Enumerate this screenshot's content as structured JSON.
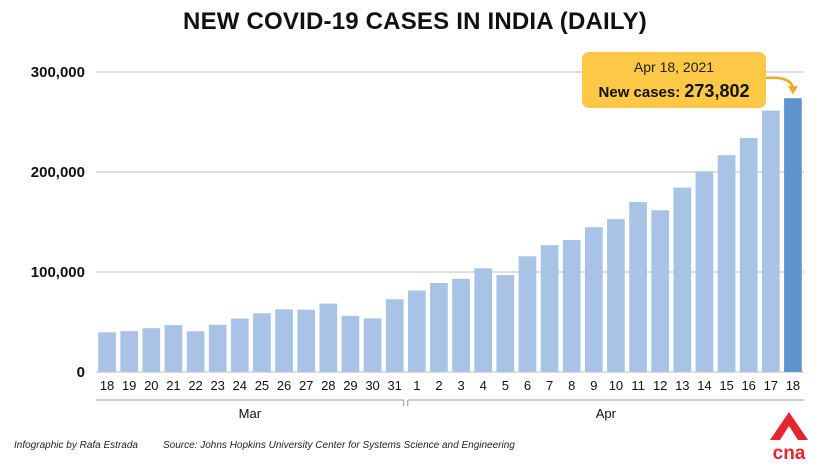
{
  "title": "NEW COVID-19 CASES IN INDIA (DAILY)",
  "footer": {
    "credit": "Infographic by Rafa Estrada",
    "source": "Source: Johns Hopkins University Center for Systems Science and Engineering"
  },
  "logo": {
    "text": "cna",
    "color": "#e3262f"
  },
  "callout": {
    "date": "Apr 18, 2021",
    "label": "New cases: ",
    "value": "273,802",
    "bg_color": "#fcc846",
    "arrow_color": "#f5a623"
  },
  "colors": {
    "bar": "#a9c3e6",
    "bar_highlight": "#5f93cd",
    "grid": "#bdbdbd"
  },
  "chart_data": {
    "type": "bar",
    "title": "NEW COVID-19 CASES IN INDIA (DAILY)",
    "xlabel": "",
    "ylabel": "",
    "ylim": [
      0,
      300000
    ],
    "yticks": [
      0,
      100000,
      200000,
      300000
    ],
    "ytick_labels": [
      "0",
      "100,000",
      "200,000",
      "300,000"
    ],
    "grid": true,
    "categories": [
      "18",
      "19",
      "20",
      "21",
      "22",
      "23",
      "24",
      "25",
      "26",
      "27",
      "28",
      "29",
      "30",
      "31",
      "1",
      "2",
      "3",
      "4",
      "5",
      "6",
      "7",
      "8",
      "9",
      "10",
      "11",
      "12",
      "13",
      "14",
      "15",
      "16",
      "17",
      "18"
    ],
    "groups": [
      {
        "label": "Mar",
        "start": 0,
        "end": 13
      },
      {
        "label": "Apr",
        "start": 14,
        "end": 31
      }
    ],
    "values": [
      39700,
      40900,
      43800,
      46900,
      40700,
      47200,
      53400,
      58700,
      62600,
      62300,
      68400,
      56100,
      53600,
      72700,
      81500,
      89000,
      93200,
      103700,
      96900,
      115700,
      126800,
      131900,
      144800,
      152900,
      169900,
      161700,
      184400,
      200700,
      216800,
      233900,
      261400,
      273802
    ],
    "highlight_index": 31
  }
}
